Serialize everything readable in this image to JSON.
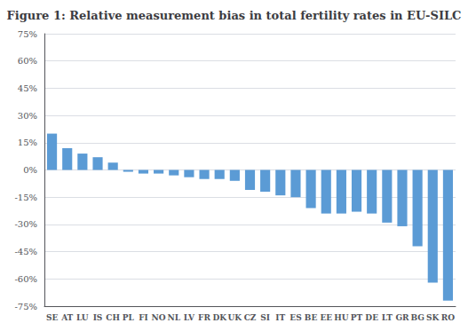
{
  "chart_data": {
    "type": "bar",
    "title": "Figure 1: Relative measurement bias in total fertility rates in EU-SILC",
    "categories": [
      "SE",
      "AT",
      "LU",
      "IS",
      "CH",
      "PL",
      "FI",
      "NO",
      "NL",
      "LV",
      "FR",
      "DK",
      "UK",
      "CZ",
      "SI",
      "IT",
      "ES",
      "BE",
      "EE",
      "HU",
      "PT",
      "DE",
      "LT",
      "GR",
      "BG",
      "SK",
      "RO"
    ],
    "values": [
      20,
      12,
      9,
      7,
      4,
      -1,
      -2,
      -2,
      -3,
      -4,
      -5,
      -5,
      -6,
      -11,
      -12,
      -14,
      -15,
      -21,
      -24,
      -24,
      -23,
      -24,
      -29,
      -31,
      -42,
      -62,
      -72
    ],
    "color": "#5B9BD5",
    "ylim": [
      -75,
      75
    ],
    "yticks": [
      {
        "value": -75,
        "label": "-75%"
      },
      {
        "value": -60,
        "label": "-60%"
      },
      {
        "value": -45,
        "label": "-45%"
      },
      {
        "value": -30,
        "label": "-30%"
      },
      {
        "value": -15,
        "label": "-15%"
      },
      {
        "value": 0,
        "label": "0%"
      },
      {
        "value": 15,
        "label": "15%"
      },
      {
        "value": 30,
        "label": "30%"
      },
      {
        "value": 45,
        "label": "45%"
      },
      {
        "value": 60,
        "label": "60%"
      },
      {
        "value": 75,
        "label": "75%"
      }
    ],
    "grid": true
  }
}
